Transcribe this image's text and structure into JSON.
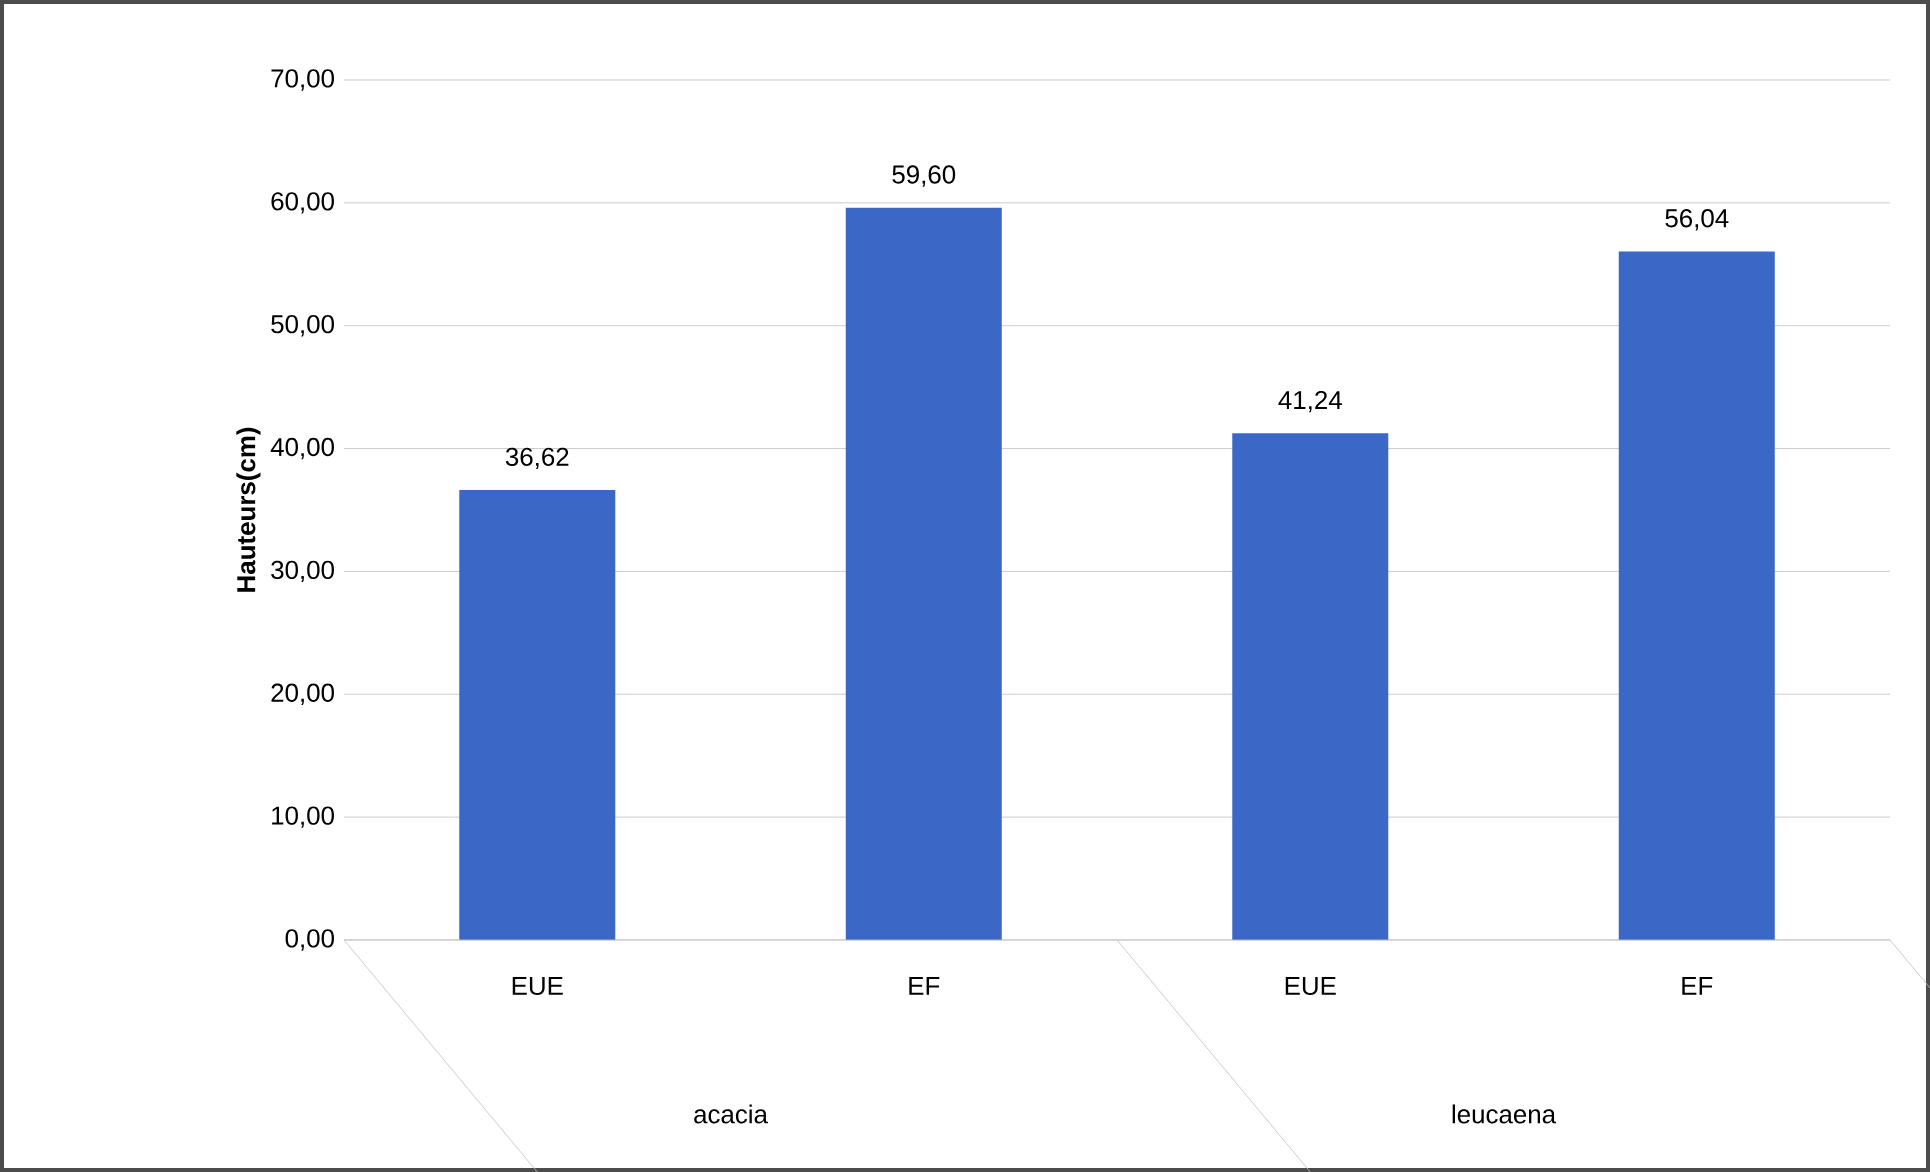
{
  "chart_data": {
    "type": "bar",
    "ylabel": "Hauteurs(cm)",
    "categories": [
      "EUE",
      "EF",
      "EUE",
      "EF"
    ],
    "values": [
      36.62,
      59.6,
      41.24,
      56.04
    ],
    "value_labels": [
      "36,62",
      "59,60",
      "41,24",
      "56,04"
    ],
    "color": "#3b68c6",
    "annotations": [
      "acacia",
      "leucaena"
    ],
    "ylim": [
      0,
      70
    ],
    "yticks": [
      {
        "value": 0,
        "label": "0,00"
      },
      {
        "value": 10,
        "label": "10,00"
      },
      {
        "value": 20,
        "label": "20,00"
      },
      {
        "value": 30,
        "label": "30,00"
      },
      {
        "value": 40,
        "label": "40,00"
      },
      {
        "value": 50,
        "label": "50,00"
      },
      {
        "value": 60,
        "label": "60,00"
      },
      {
        "value": 70,
        "label": "70,00"
      }
    ],
    "grid": "y"
  }
}
